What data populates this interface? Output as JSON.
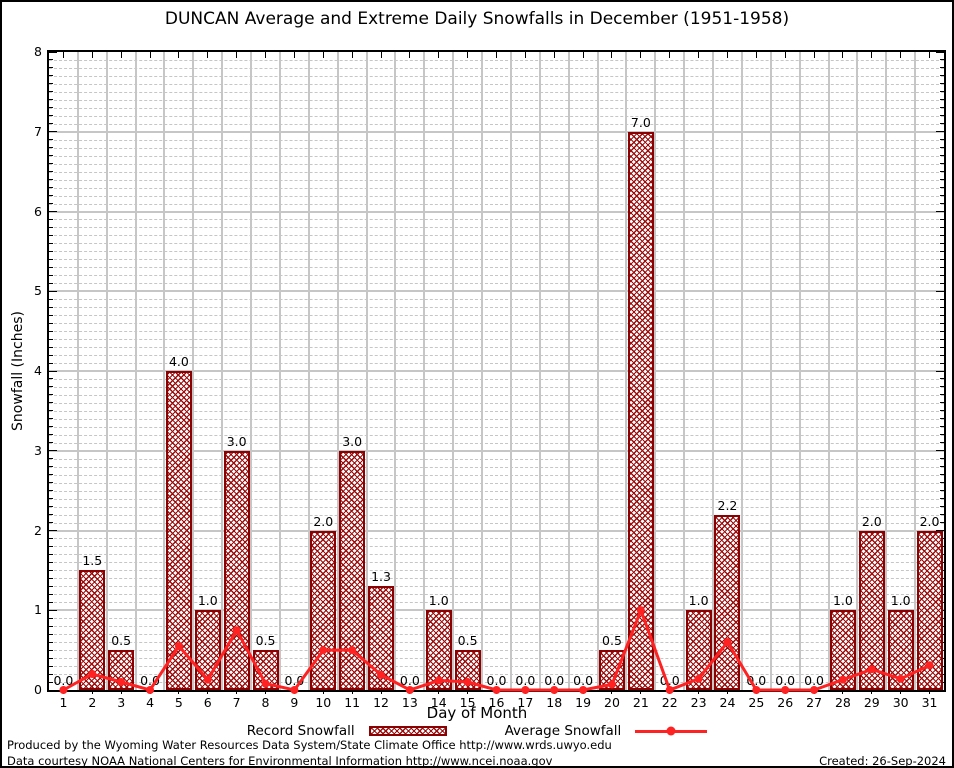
{
  "title": "DUNCAN Average and Extreme Daily Snowfalls in December (1951-1958)",
  "chart_data": {
    "type": "bar",
    "x": [
      1,
      2,
      3,
      4,
      5,
      6,
      7,
      8,
      9,
      10,
      11,
      12,
      13,
      14,
      15,
      16,
      17,
      18,
      19,
      20,
      21,
      22,
      23,
      24,
      25,
      26,
      27,
      28,
      29,
      30,
      31
    ],
    "series": [
      {
        "name": "Record Snowfall",
        "type": "bar",
        "values": [
          0.0,
          1.5,
          0.5,
          0.0,
          4.0,
          1.0,
          3.0,
          0.5,
          0.0,
          2.0,
          3.0,
          1.3,
          0.0,
          1.0,
          0.5,
          0.0,
          0.0,
          0.0,
          0.0,
          0.5,
          7.0,
          0.0,
          1.0,
          2.2,
          0.0,
          0.0,
          0.0,
          1.0,
          2.0,
          1.0,
          2.0
        ],
        "labels": [
          "0.0",
          "1.5",
          "0.5",
          "0.0",
          "4.0",
          "1.0",
          "3.0",
          "0.5",
          "0.0",
          "2.0",
          "3.0",
          "1.3",
          "0.0",
          "1.0",
          "0.5",
          "0.0",
          "0.0",
          "0.0",
          "0.0",
          "0.5",
          "7.0",
          "0.0",
          "1.0",
          "2.2",
          "0.0",
          "0.0",
          "0.0",
          "1.0",
          "2.0",
          "1.0",
          "2.0"
        ],
        "color": "#8b0000"
      },
      {
        "name": "Average Snowfall",
        "type": "line",
        "values": [
          0.0,
          0.2,
          0.1,
          0.0,
          0.55,
          0.13,
          0.75,
          0.08,
          0.0,
          0.5,
          0.5,
          0.19,
          0.0,
          0.12,
          0.1,
          0.0,
          0.0,
          0.0,
          0.0,
          0.07,
          1.0,
          0.0,
          0.14,
          0.6,
          0.0,
          0.0,
          0.0,
          0.13,
          0.26,
          0.14,
          0.31
        ],
        "color": "#ff2222"
      }
    ],
    "xlabel": "Day of Month",
    "ylabel": "Snowfall (Inches)",
    "ylim": [
      0,
      8
    ],
    "yticks": [
      0,
      1,
      2,
      3,
      4,
      5,
      6,
      7,
      8
    ],
    "grid": "major solid gray at integers, minor dashed gray every 0.1, vertical solid gray between days",
    "legend_position": "bottom-center"
  },
  "legend": {
    "record_label": "Record Snowfall",
    "average_label": "Average Snowfall"
  },
  "footer": {
    "line1": "Produced by the Wyoming Water Resources Data System/State Climate Office http://www.wrds.uwyo.edu",
    "line2": "Data courtesy NOAA National Centers for Environmental Information http://www.ncei.noaa.gov",
    "created": "Created: 26-Sep-2024"
  },
  "colors": {
    "record_bar": "#8b0000",
    "average_line": "#ff2222",
    "grid": "#c6c6c6",
    "text": "#000000"
  }
}
